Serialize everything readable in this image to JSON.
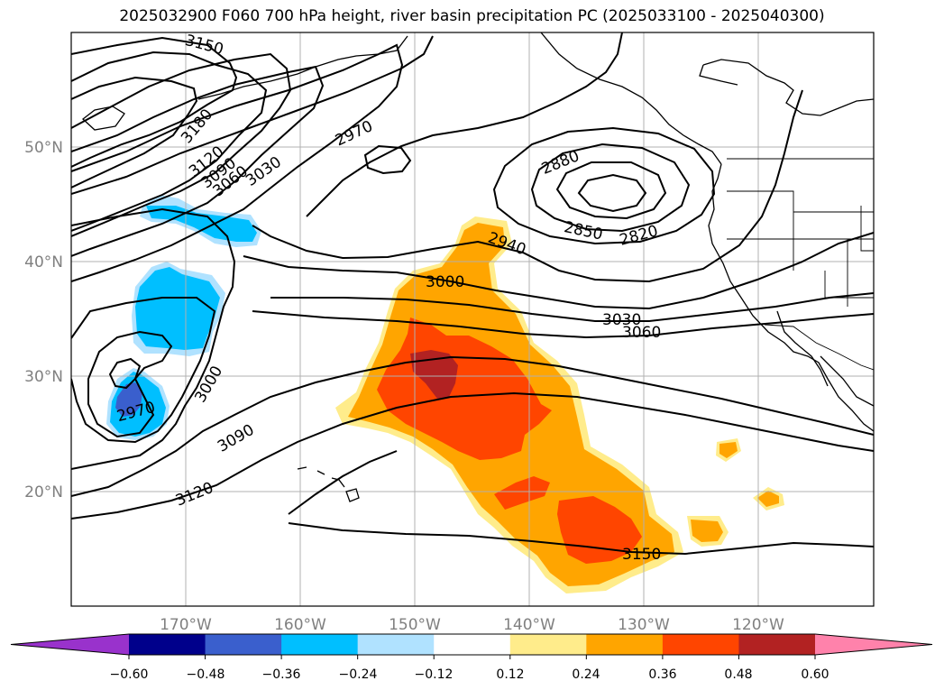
{
  "title": "2025032900 F060 700 hPa height, river basin precipitation PC (2025033100 - 2025040300)",
  "map": {
    "lon_range": [
      -180,
      -110
    ],
    "lat_range": [
      10,
      60
    ],
    "lon_ticks": [
      "170°W",
      "160°W",
      "150°W",
      "140°W",
      "130°W",
      "120°W"
    ],
    "lat_ticks": [
      "50°N",
      "40°N",
      "30°N",
      "20°N"
    ],
    "tick_color": "#808080",
    "grid": true,
    "coastline_color": "#000000"
  },
  "contours": {
    "variable": "700 hPa height",
    "color": "#000000",
    "labels": [
      "3150",
      "3180",
      "3120",
      "3090",
      "3060",
      "3030",
      "2970",
      "2880",
      "2850",
      "2820",
      "2940",
      "3000",
      "3030",
      "3060",
      "3000",
      "2970",
      "3090",
      "3120",
      "3150"
    ]
  },
  "colorbar": {
    "ticks": [
      "−0.60",
      "−0.48",
      "−0.36",
      "−0.24",
      "−0.12",
      "0.12",
      "0.24",
      "0.36",
      "0.48",
      "0.60"
    ],
    "colors": [
      "#9932cc",
      "#00008b",
      "#3a5fcd",
      "#00bfff",
      "#b0e2ff",
      "#ffffff",
      "#ffec8b",
      "#ffa500",
      "#ff4500",
      "#b22222",
      "#ff82ab"
    ],
    "extend": "both"
  },
  "shading": {
    "positive_colors": [
      "#ffec8b",
      "#ffa500",
      "#ff4500",
      "#b22222"
    ],
    "negative_colors": [
      "#b0e2ff",
      "#00bfff",
      "#3a5fcd"
    ]
  }
}
